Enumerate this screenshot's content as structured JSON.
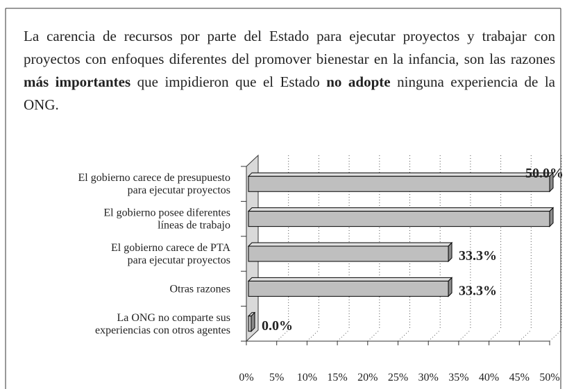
{
  "paragraph": [
    {
      "text": "La carencia de recursos por parte del Estado para ejecutar proyectos y trabajar con proyectos con enfoques diferentes del promover bienestar en la infancia, son las razones ",
      "bold": false
    },
    {
      "text": "más importantes",
      "bold": true
    },
    {
      "text": " que impidieron que el Estado ",
      "bold": false
    },
    {
      "text": "no adopte",
      "bold": true
    },
    {
      "text": " ninguna experiencia de la ONG.",
      "bold": false
    }
  ],
  "chart_data": {
    "type": "bar3d_horizontal",
    "categories": [
      [
        "El gobierno carece de presupuesto",
        "para ejecutar proyectos"
      ],
      [
        "El gobierno posee diferentes",
        "líneas de trabajo"
      ],
      [
        "El gobierno carece de PTA",
        "para ejecutar proyectos"
      ],
      [
        "Otras razones"
      ],
      [
        "La ONG no comparte sus",
        "experiencias con otros agentes"
      ]
    ],
    "values": [
      50,
      50,
      33.3,
      33.3,
      0
    ],
    "value_labels": [
      "50.0%",
      null,
      "33.3%",
      "33.3%",
      "0.0%"
    ],
    "color": "#bfbfbf",
    "xlim": [
      0,
      50
    ],
    "xticks": [
      {
        "value": 0,
        "label": "0%"
      },
      {
        "value": 5,
        "label": "5%"
      },
      {
        "value": 10,
        "label": "10%"
      },
      {
        "value": 15,
        "label": "15%"
      },
      {
        "value": 20,
        "label": "20%"
      },
      {
        "value": 25,
        "label": "25%"
      },
      {
        "value": 30,
        "label": "30%"
      },
      {
        "value": 35,
        "label": "35%"
      },
      {
        "value": 40,
        "label": "40%"
      },
      {
        "value": 45,
        "label": "45%"
      },
      {
        "value": 50,
        "label": "50%"
      }
    ],
    "grid": true
  }
}
